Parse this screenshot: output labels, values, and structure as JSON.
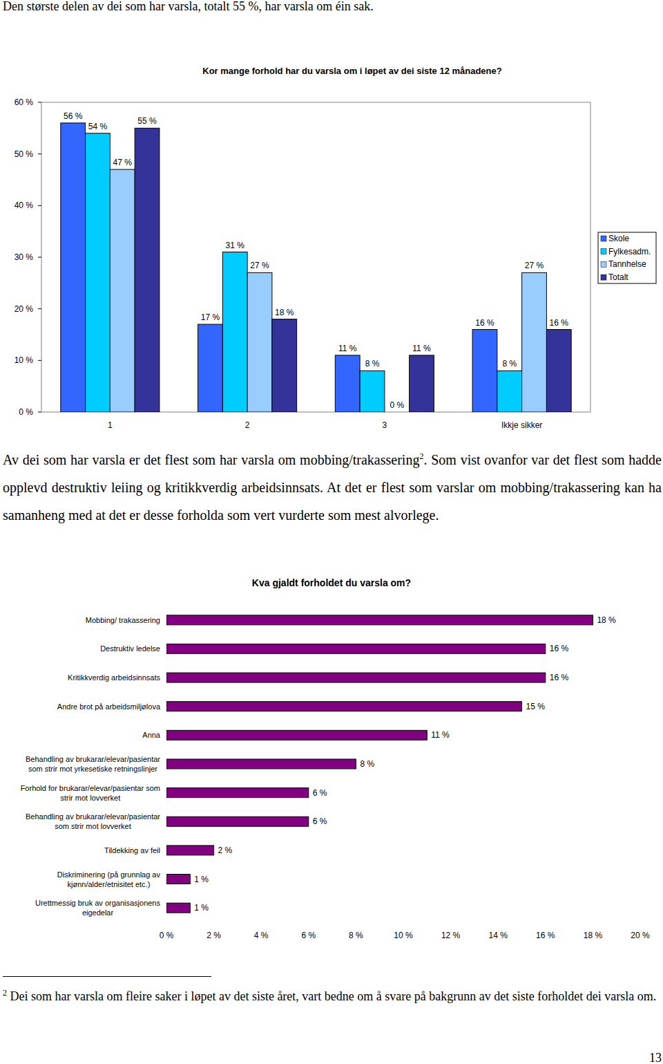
{
  "intro": "Den største delen av dei som har varsla, totalt 55 %, har varsla om éin sak.",
  "chart_data": [
    {
      "type": "bar",
      "title": "Kor mange forhold har du varsla om i løpet av dei siste 12 månadene?",
      "categories": [
        "1",
        "2",
        "3",
        "Ikkje sikker"
      ],
      "series": [
        {
          "name": "Skole",
          "color": "#3366ff",
          "values": [
            56,
            17,
            11,
            16
          ],
          "value_labels": [
            "56 %",
            "17 %",
            "11 %",
            "16 %"
          ]
        },
        {
          "name": "Fylkesadm.",
          "color": "#00ccff",
          "values": [
            54,
            31,
            8,
            8
          ],
          "value_labels": [
            "54 %",
            "31 %",
            "8 %",
            "8 %"
          ]
        },
        {
          "name": "Tannhelse",
          "color": "#99ccff",
          "values": [
            47,
            27,
            0,
            27
          ],
          "value_labels": [
            "47 %",
            "27 %",
            "0 %",
            "27 %"
          ]
        },
        {
          "name": "Totalt",
          "color": "#333399",
          "values": [
            55,
            18,
            11,
            16
          ],
          "value_labels": [
            "55 %",
            "18 %",
            "11 %",
            "16 %"
          ]
        }
      ],
      "ylim": [
        0,
        60
      ],
      "yticks": [
        {
          "value": 0,
          "label": "0 %"
        },
        {
          "value": 10,
          "label": "10 %"
        },
        {
          "value": 20,
          "label": "20 %"
        },
        {
          "value": 30,
          "label": "30 %"
        },
        {
          "value": 40,
          "label": "40 %"
        },
        {
          "value": 50,
          "label": "50 %"
        },
        {
          "value": 60,
          "label": "60 %"
        }
      ],
      "grid": false,
      "legend": "right",
      "data_labels": true
    },
    {
      "type": "bar",
      "orientation": "horizontal",
      "title": "Kva gjaldt forholdet du varsla om?",
      "categories": [
        "Mobbing/ trakassering",
        "Destruktiv ledelse",
        "Kritikkverdig arbeidsinnsats",
        "Andre brot på arbeidsmiljølova",
        "Anna",
        "Behandling av brukarar/elevar/pasientar\nsom strir mot yrkesetiske retningslinjer",
        "Forhold for brukarar/elevar/pasientar som\nstrir mot lovverket",
        "Behandling av brukarar/elevar/pasientar\nsom strir mot lovverket",
        "Tildekking av feil",
        "Diskriminering (på grunnlag av\nkjønn/alder/etnisitet etc.)",
        "Urettmessig bruk av organisasjonens\neigedelar"
      ],
      "values": [
        18,
        16,
        16,
        15,
        11,
        8,
        6,
        6,
        2,
        1,
        1
      ],
      "value_labels": [
        "18 %",
        "16 %",
        "16 %",
        "15 %",
        "11 %",
        "8 %",
        "6 %",
        "6 %",
        "2 %",
        "1 %",
        "1 %"
      ],
      "color": "#800080",
      "xlim": [
        0,
        20
      ],
      "xticks": [
        {
          "value": 0,
          "label": "0 %"
        },
        {
          "value": 2,
          "label": "2 %"
        },
        {
          "value": 4,
          "label": "4 %"
        },
        {
          "value": 6,
          "label": "6 %"
        },
        {
          "value": 8,
          "label": "8 %"
        },
        {
          "value": 10,
          "label": "10 %"
        },
        {
          "value": 12,
          "label": "12 %"
        },
        {
          "value": 14,
          "label": "14 %"
        },
        {
          "value": 16,
          "label": "16 %"
        },
        {
          "value": 18,
          "label": "18 %"
        },
        {
          "value": 20,
          "label": "20 %"
        }
      ],
      "grid": false,
      "data_labels": true
    }
  ],
  "paragraph": {
    "text_before": "Av dei som har varsla er det flest som har varsla om mobbing/trakassering",
    "footnote_ref": 2,
    "text_after": ". Som vist ovanfor var det flest som hadde opplevd destruktiv leiing og kritikkverdig arbeidsinnsats. At det er flest som varslar om mobbing/trakassering kan ha samanheng med at det er desse forholda som vert vurderte som mest alvorlege."
  },
  "footnote": {
    "marker": 2,
    "text": "Dei som har varsla om fleire saker i løpet av det siste året, vart bedne om å svare på bakgrunn av det siste forholdet dei varsla om."
  },
  "page_number": 13
}
